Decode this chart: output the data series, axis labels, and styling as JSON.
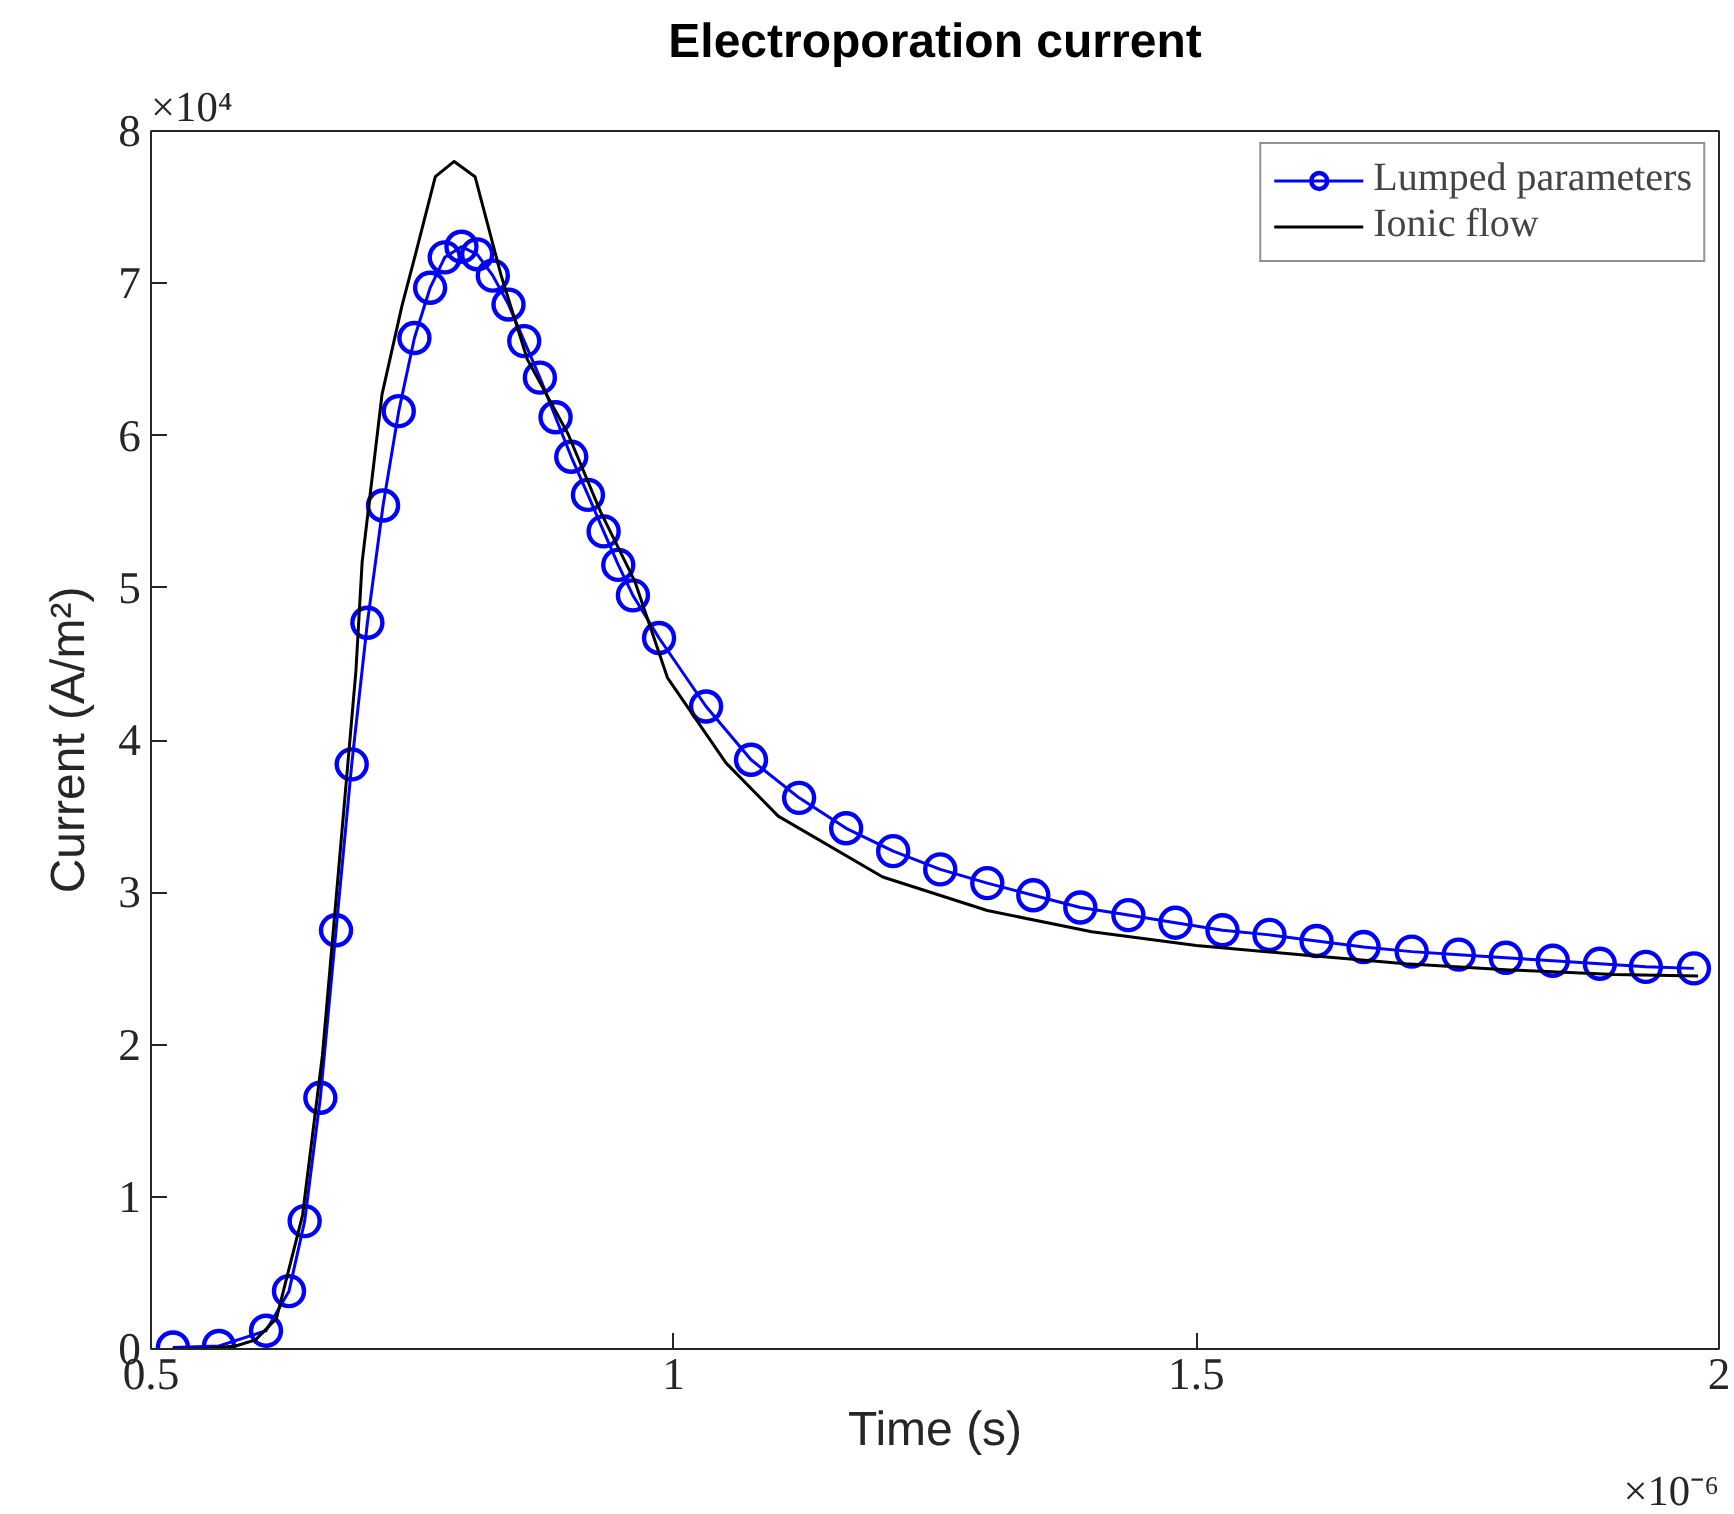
{
  "chart_data": {
    "type": "line",
    "title": "Electroporation current",
    "xlabel": "Time (s)",
    "ylabel": "Current (A/m²)",
    "annotations": [
      "×10⁴",
      "×10⁻⁶"
    ],
    "xlim": [
      0.5,
      2
    ],
    "xticks": [
      0.5,
      1,
      1.5,
      2
    ],
    "ylim": [
      0,
      8
    ],
    "yticks": [
      0,
      1,
      2,
      3,
      4,
      5,
      6,
      7,
      8
    ],
    "grid": false,
    "legend": "top right",
    "line_style": "solid",
    "series": [
      {
        "name": "Lumped parameters",
        "color": "#0000ff",
        "marker": "circle",
        "x": [
          0.521,
          0.565,
          0.61,
          0.632,
          0.647,
          0.662,
          0.677,
          0.692,
          0.707,
          0.722,
          0.737,
          0.752,
          0.767,
          0.781,
          0.797,
          0.812,
          0.827,
          0.842,
          0.857,
          0.872,
          0.887,
          0.902,
          0.918,
          0.933,
          0.947,
          0.961,
          0.986,
          1.031,
          1.074,
          1.12,
          1.165,
          1.21,
          1.255,
          1.3,
          1.344,
          1.389,
          1.435,
          1.48,
          1.525,
          1.57,
          1.615,
          1.66,
          1.706,
          1.751,
          1.796,
          1.841,
          1.886,
          1.93,
          1.976
        ],
        "values": [
          0.01,
          0.02,
          0.12,
          0.38,
          0.84,
          1.65,
          2.75,
          3.84,
          4.77,
          5.54,
          6.16,
          6.64,
          6.97,
          7.17,
          7.24,
          7.19,
          7.05,
          6.86,
          6.62,
          6.38,
          6.12,
          5.86,
          5.61,
          5.37,
          5.15,
          4.95,
          4.67,
          4.22,
          3.87,
          3.62,
          3.42,
          3.27,
          3.15,
          3.06,
          2.98,
          2.9,
          2.85,
          2.8,
          2.75,
          2.72,
          2.68,
          2.64,
          2.61,
          2.59,
          2.57,
          2.55,
          2.53,
          2.51,
          2.5
        ]
      },
      {
        "name": "Ionic flow",
        "color": "#000000",
        "marker": "none",
        "x": [
          0.52,
          0.55,
          0.581,
          0.6,
          0.62,
          0.645,
          0.664,
          0.68,
          0.696,
          0.702,
          0.721,
          0.74,
          0.753,
          0.772,
          0.79,
          0.81,
          0.835,
          0.86,
          0.899,
          0.93,
          0.963,
          0.994,
          1.05,
          1.1,
          1.2,
          1.3,
          1.4,
          1.5,
          1.6,
          1.7,
          1.8,
          1.9,
          1.98
        ],
        "values": [
          0,
          0,
          0.02,
          0.06,
          0.2,
          0.88,
          1.93,
          3.19,
          4.45,
          5.17,
          6.27,
          6.85,
          7.19,
          7.7,
          7.8,
          7.7,
          7.05,
          6.5,
          6.01,
          5.5,
          5.04,
          4.41,
          3.85,
          3.5,
          3.1,
          2.88,
          2.74,
          2.65,
          2.59,
          2.53,
          2.49,
          2.46,
          2.45
        ]
      }
    ]
  }
}
